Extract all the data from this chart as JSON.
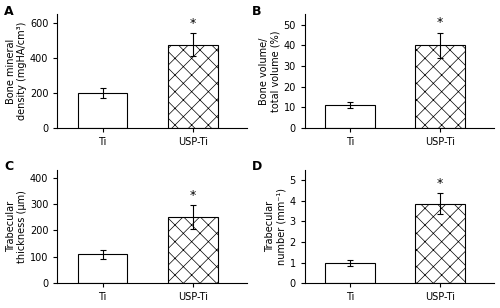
{
  "panels": [
    {
      "label": "A",
      "ylabel": "Bone mineral\ndensity (mgHA/cm³)",
      "categories": [
        "Ti",
        "USP-Ti"
      ],
      "values": [
        200,
        475
      ],
      "errors": [
        30,
        65
      ],
      "ylim": [
        0,
        650
      ],
      "yticks": [
        0,
        200,
        400,
        600
      ],
      "sig_bar": true
    },
    {
      "label": "B",
      "ylabel": "Bone volume/\ntotal volume (%)",
      "categories": [
        "Ti",
        "USP-Ti"
      ],
      "values": [
        11,
        40
      ],
      "errors": [
        1.5,
        6
      ],
      "ylim": [
        0,
        55
      ],
      "yticks": [
        0,
        10,
        20,
        30,
        40,
        50
      ],
      "sig_bar": true
    },
    {
      "label": "C",
      "ylabel": "Trabecular\nthickness (μm)",
      "categories": [
        "Ti",
        "USP-Ti"
      ],
      "values": [
        110,
        250
      ],
      "errors": [
        18,
        45
      ],
      "ylim": [
        0,
        430
      ],
      "yticks": [
        0,
        100,
        200,
        300,
        400
      ],
      "sig_bar": true
    },
    {
      "label": "D",
      "ylabel": "Trabecular\nnumber (mm⁻¹)",
      "categories": [
        "Ti",
        "USP-Ti"
      ],
      "values": [
        1.0,
        3.85
      ],
      "errors": [
        0.15,
        0.5
      ],
      "ylim": [
        0,
        5.5
      ],
      "yticks": [
        0,
        1,
        2,
        3,
        4,
        5
      ],
      "sig_bar": true
    }
  ],
  "background_color": "white",
  "fontsize": 7,
  "label_fontsize": 9
}
